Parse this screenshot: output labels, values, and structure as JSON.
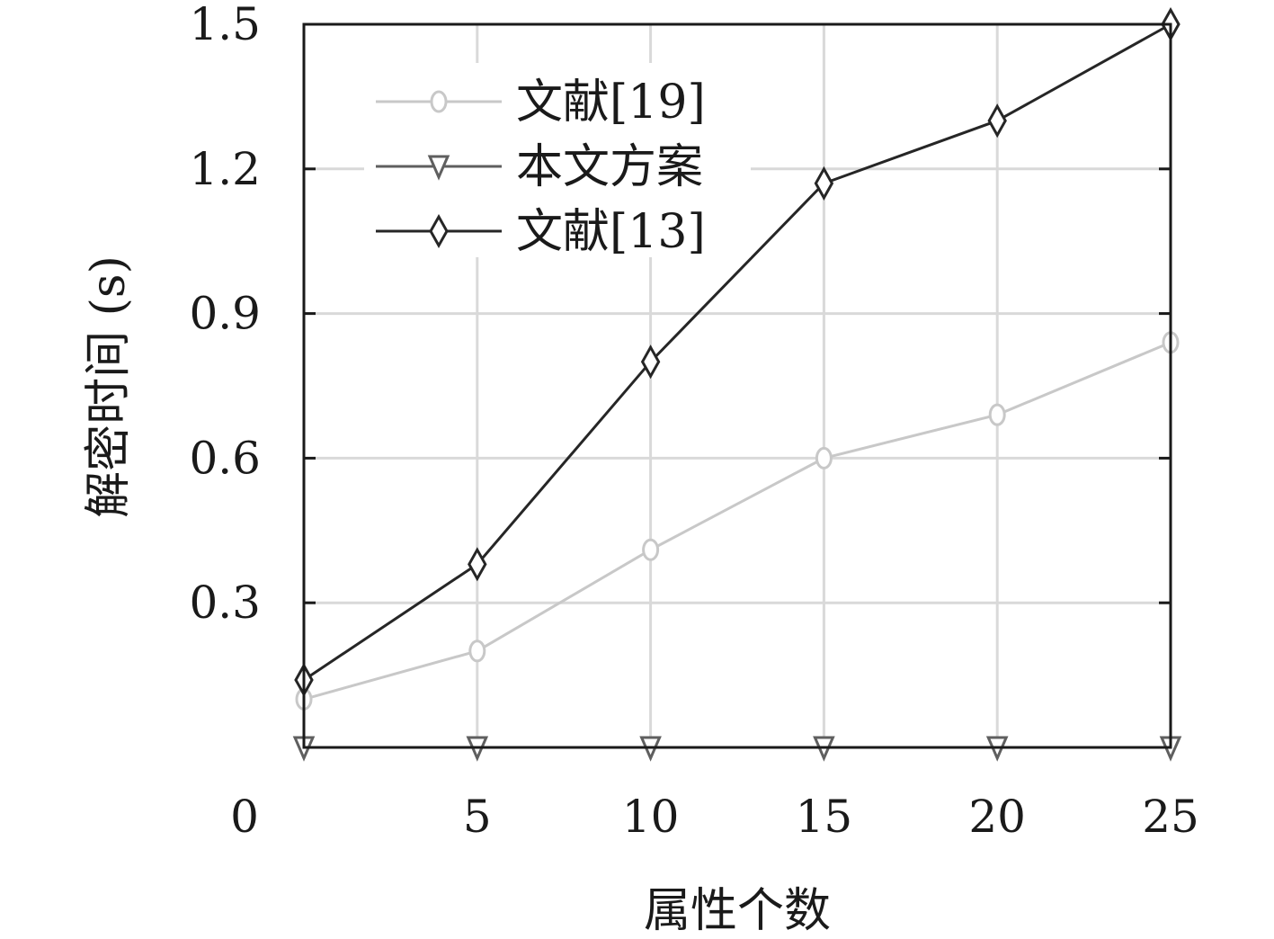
{
  "chart_data": {
    "type": "line",
    "title": "",
    "xlabel": "属性个数",
    "ylabel": "解密时间 (s)",
    "xlim": [
      0,
      25
    ],
    "ylim": [
      0,
      1.5
    ],
    "xticks": [
      0,
      5,
      10,
      15,
      20,
      25
    ],
    "yticks": [
      0.3,
      0.6,
      0.9,
      1.2,
      1.5
    ],
    "xtick_labels": [
      "0",
      "5",
      "10",
      "15",
      "20",
      "25"
    ],
    "ytick_labels": [
      "0.3",
      "0.6",
      "0.9",
      "1.2",
      "1.5"
    ],
    "grid": true,
    "legend_position": "top-left",
    "x": [
      0,
      5,
      10,
      15,
      20,
      25
    ],
    "series": [
      {
        "name": "文献[19]",
        "values": [
          0.1,
          0.2,
          0.41,
          0.6,
          0.69,
          0.84
        ],
        "color": "#c8c8c8",
        "marker": "circle"
      },
      {
        "name": "本文方案",
        "values": [
          0,
          0,
          0,
          0,
          0,
          0
        ],
        "color": "#5f5f5f",
        "marker": "triangle-down"
      },
      {
        "name": "文献[13]",
        "values": [
          0.14,
          0.38,
          0.8,
          1.17,
          1.3,
          1.5
        ],
        "color": "#262626",
        "marker": "diamond"
      }
    ]
  }
}
